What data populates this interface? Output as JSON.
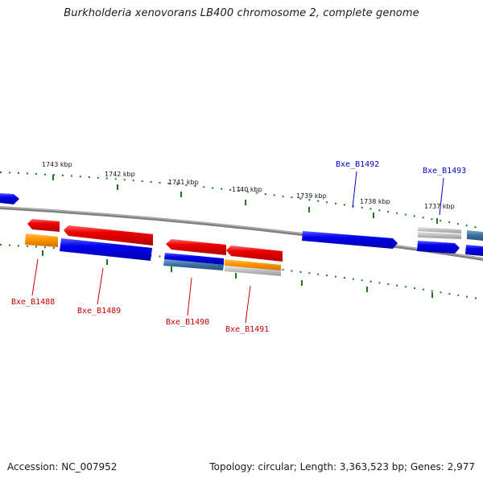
{
  "title": "Burkholderia xenovorans LB400 chromosome 2, complete genome",
  "footer": {
    "accession": "Accession: NC_007952",
    "summary": "Topology: circular; Length: 3,363,523 bp; Genes: 2,977"
  },
  "ticks": [
    "1743 kbp",
    "1742 kbp",
    "1741 kbp",
    "1740 kbp",
    "1739 kbp",
    "1738 kbp",
    "1737 kbp"
  ],
  "gene_labels": [
    {
      "name": "Bxe_B1488",
      "color": "#cc0000"
    },
    {
      "name": "Bxe_B1489",
      "color": "#cc0000"
    },
    {
      "name": "Bxe_B1490",
      "color": "#cc0000"
    },
    {
      "name": "Bxe_B1491",
      "color": "#cc0000"
    },
    {
      "name": "Bxe_B1492",
      "color": "#0000cc"
    },
    {
      "name": "Bxe_B1493",
      "color": "#0000cc"
    }
  ],
  "colors": {
    "backbone": "#808080",
    "tick_marks": "#1a7a1a",
    "forward_gene": "#0000ee",
    "reverse_gene": "#ee0000",
    "orange_feature": "#ff9900",
    "gray_feature": "#aaaaaa",
    "steel_feature": "#3a6fa0"
  }
}
